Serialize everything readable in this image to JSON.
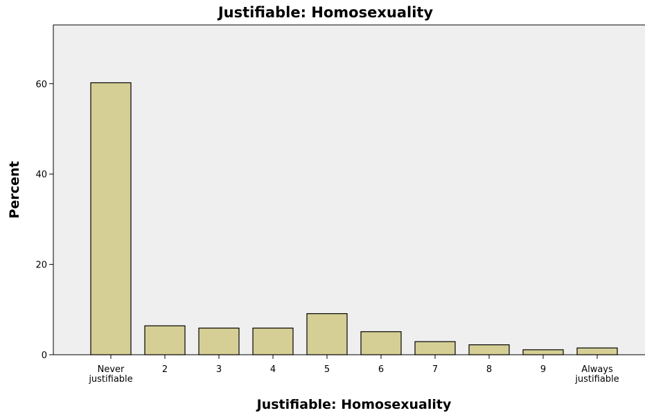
{
  "chart_data": {
    "type": "bar",
    "title": "Justifiable: Homosexuality",
    "xlabel": "Justifiable: Homosexuality",
    "ylabel": "Percent",
    "categories": [
      "Never justifiable",
      "2",
      "3",
      "4",
      "5",
      "6",
      "7",
      "8",
      "9",
      "Always justifiable"
    ],
    "category_lines": [
      [
        "Never",
        "justifiable"
      ],
      [
        "2"
      ],
      [
        "3"
      ],
      [
        "4"
      ],
      [
        "5"
      ],
      [
        "6"
      ],
      [
        "7"
      ],
      [
        "8"
      ],
      [
        "9"
      ],
      [
        "Always",
        "justifiable"
      ]
    ],
    "values": [
      60.2,
      6.4,
      5.9,
      5.9,
      9.1,
      5.1,
      2.9,
      2.2,
      1.1,
      1.5
    ],
    "ylim": [
      0,
      73
    ],
    "yticks": [
      0,
      20,
      40,
      60
    ],
    "grid": false,
    "colors": {
      "bar": "#d5cf96",
      "plot_background": "#efefef"
    }
  }
}
